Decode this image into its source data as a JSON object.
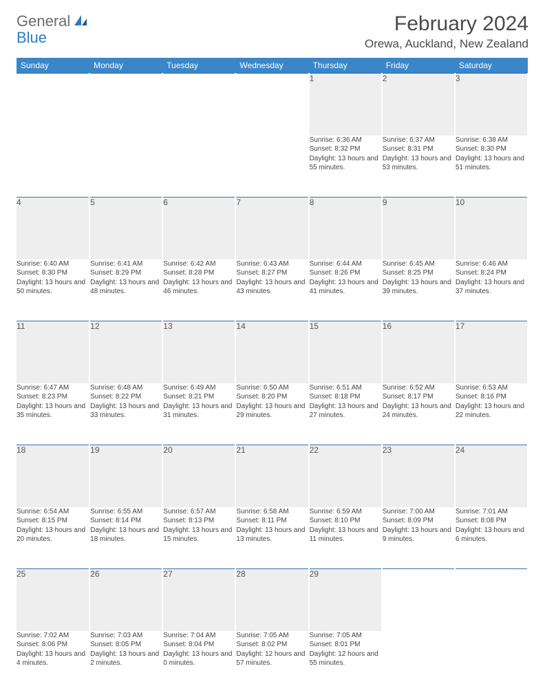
{
  "logo": {
    "general": "General",
    "blue": "Blue"
  },
  "title": "February 2024",
  "location": "Orewa, Auckland, New Zealand",
  "colors": {
    "header_bg": "#3a86c8",
    "header_text": "#ffffff",
    "daynum_bg": "#eeeeee",
    "border_top": "#3a6ea5",
    "text": "#444444",
    "logo_gray": "#6c6c6c",
    "logo_blue": "#2c7bc4"
  },
  "weekdays": [
    "Sunday",
    "Monday",
    "Tuesday",
    "Wednesday",
    "Thursday",
    "Friday",
    "Saturday"
  ],
  "weeks": [
    [
      null,
      null,
      null,
      null,
      {
        "n": "1",
        "sr": "Sunrise: 6:36 AM",
        "ss": "Sunset: 8:32 PM",
        "dl": "Daylight: 13 hours and 55 minutes."
      },
      {
        "n": "2",
        "sr": "Sunrise: 6:37 AM",
        "ss": "Sunset: 8:31 PM",
        "dl": "Daylight: 13 hours and 53 minutes."
      },
      {
        "n": "3",
        "sr": "Sunrise: 6:38 AM",
        "ss": "Sunset: 8:30 PM",
        "dl": "Daylight: 13 hours and 51 minutes."
      }
    ],
    [
      {
        "n": "4",
        "sr": "Sunrise: 6:40 AM",
        "ss": "Sunset: 8:30 PM",
        "dl": "Daylight: 13 hours and 50 minutes."
      },
      {
        "n": "5",
        "sr": "Sunrise: 6:41 AM",
        "ss": "Sunset: 8:29 PM",
        "dl": "Daylight: 13 hours and 48 minutes."
      },
      {
        "n": "6",
        "sr": "Sunrise: 6:42 AM",
        "ss": "Sunset: 8:28 PM",
        "dl": "Daylight: 13 hours and 46 minutes."
      },
      {
        "n": "7",
        "sr": "Sunrise: 6:43 AM",
        "ss": "Sunset: 8:27 PM",
        "dl": "Daylight: 13 hours and 43 minutes."
      },
      {
        "n": "8",
        "sr": "Sunrise: 6:44 AM",
        "ss": "Sunset: 8:26 PM",
        "dl": "Daylight: 13 hours and 41 minutes."
      },
      {
        "n": "9",
        "sr": "Sunrise: 6:45 AM",
        "ss": "Sunset: 8:25 PM",
        "dl": "Daylight: 13 hours and 39 minutes."
      },
      {
        "n": "10",
        "sr": "Sunrise: 6:46 AM",
        "ss": "Sunset: 8:24 PM",
        "dl": "Daylight: 13 hours and 37 minutes."
      }
    ],
    [
      {
        "n": "11",
        "sr": "Sunrise: 6:47 AM",
        "ss": "Sunset: 8:23 PM",
        "dl": "Daylight: 13 hours and 35 minutes."
      },
      {
        "n": "12",
        "sr": "Sunrise: 6:48 AM",
        "ss": "Sunset: 8:22 PM",
        "dl": "Daylight: 13 hours and 33 minutes."
      },
      {
        "n": "13",
        "sr": "Sunrise: 6:49 AM",
        "ss": "Sunset: 8:21 PM",
        "dl": "Daylight: 13 hours and 31 minutes."
      },
      {
        "n": "14",
        "sr": "Sunrise: 6:50 AM",
        "ss": "Sunset: 8:20 PM",
        "dl": "Daylight: 13 hours and 29 minutes."
      },
      {
        "n": "15",
        "sr": "Sunrise: 6:51 AM",
        "ss": "Sunset: 8:18 PM",
        "dl": "Daylight: 13 hours and 27 minutes."
      },
      {
        "n": "16",
        "sr": "Sunrise: 6:52 AM",
        "ss": "Sunset: 8:17 PM",
        "dl": "Daylight: 13 hours and 24 minutes."
      },
      {
        "n": "17",
        "sr": "Sunrise: 6:53 AM",
        "ss": "Sunset: 8:16 PM",
        "dl": "Daylight: 13 hours and 22 minutes."
      }
    ],
    [
      {
        "n": "18",
        "sr": "Sunrise: 6:54 AM",
        "ss": "Sunset: 8:15 PM",
        "dl": "Daylight: 13 hours and 20 minutes."
      },
      {
        "n": "19",
        "sr": "Sunrise: 6:55 AM",
        "ss": "Sunset: 8:14 PM",
        "dl": "Daylight: 13 hours and 18 minutes."
      },
      {
        "n": "20",
        "sr": "Sunrise: 6:57 AM",
        "ss": "Sunset: 8:13 PM",
        "dl": "Daylight: 13 hours and 15 minutes."
      },
      {
        "n": "21",
        "sr": "Sunrise: 6:58 AM",
        "ss": "Sunset: 8:11 PM",
        "dl": "Daylight: 13 hours and 13 minutes."
      },
      {
        "n": "22",
        "sr": "Sunrise: 6:59 AM",
        "ss": "Sunset: 8:10 PM",
        "dl": "Daylight: 13 hours and 11 minutes."
      },
      {
        "n": "23",
        "sr": "Sunrise: 7:00 AM",
        "ss": "Sunset: 8:09 PM",
        "dl": "Daylight: 13 hours and 9 minutes."
      },
      {
        "n": "24",
        "sr": "Sunrise: 7:01 AM",
        "ss": "Sunset: 8:08 PM",
        "dl": "Daylight: 13 hours and 6 minutes."
      }
    ],
    [
      {
        "n": "25",
        "sr": "Sunrise: 7:02 AM",
        "ss": "Sunset: 8:06 PM",
        "dl": "Daylight: 13 hours and 4 minutes."
      },
      {
        "n": "26",
        "sr": "Sunrise: 7:03 AM",
        "ss": "Sunset: 8:05 PM",
        "dl": "Daylight: 13 hours and 2 minutes."
      },
      {
        "n": "27",
        "sr": "Sunrise: 7:04 AM",
        "ss": "Sunset: 8:04 PM",
        "dl": "Daylight: 13 hours and 0 minutes."
      },
      {
        "n": "28",
        "sr": "Sunrise: 7:05 AM",
        "ss": "Sunset: 8:02 PM",
        "dl": "Daylight: 12 hours and 57 minutes."
      },
      {
        "n": "29",
        "sr": "Sunrise: 7:05 AM",
        "ss": "Sunset: 8:01 PM",
        "dl": "Daylight: 12 hours and 55 minutes."
      },
      null,
      null
    ]
  ]
}
